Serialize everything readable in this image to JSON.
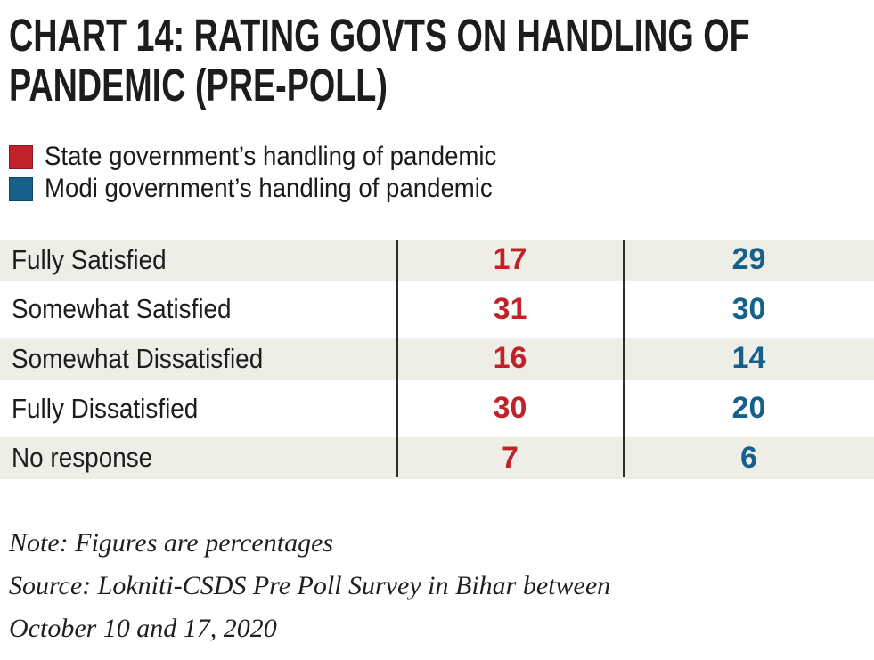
{
  "header": {
    "title_lines": [
      "CHART 14: RATING GOVTS ON HANDLING OF",
      "PANDEMIC (PRE-POLL)"
    ]
  },
  "chart_data": {
    "type": "table",
    "title": "CHART 14: RATING GOVTS ON HANDLING OF PANDEMIC (PRE-POLL)",
    "units": "percent",
    "categories": [
      "Fully Satisfied",
      "Somewhat Satisfied",
      "Somewhat Dissatisfied",
      "Fully Dissatisfied",
      "No response"
    ],
    "series": [
      {
        "name": "State government’s handling of pandemic",
        "color": "#c1222a",
        "values": [
          17,
          31,
          16,
          30,
          7
        ]
      },
      {
        "name": "Modi government’s handling of pandemic",
        "color": "#16618c",
        "values": [
          29,
          30,
          14,
          20,
          6
        ]
      }
    ],
    "legend_position": "top",
    "grid": false
  },
  "footer": {
    "note": "Note: Figures are percentages",
    "source_line1": "Source: Lokniti-CSDS Pre Poll Survey in Bihar between",
    "source_line2": "October 10 and 17, 2020"
  },
  "colors": {
    "state_series_red": "#c1222a",
    "modi_series_blue": "#16618c",
    "row_stripe_beige": "#eeede6",
    "divider_black": "#2e2c2a",
    "title_black": "#1c1c1a"
  }
}
